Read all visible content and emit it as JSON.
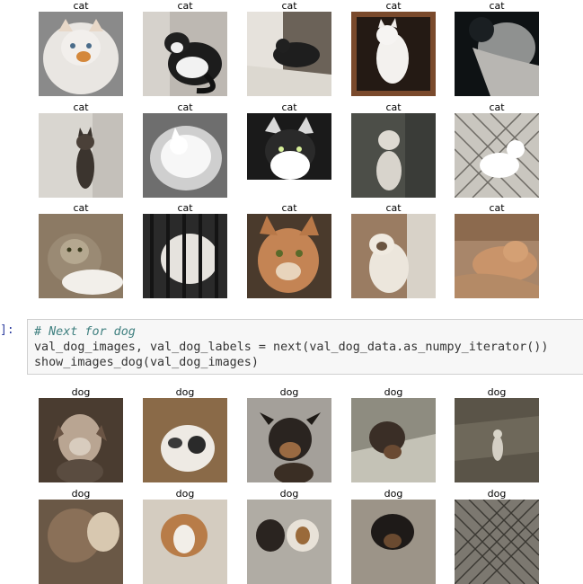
{
  "cat_section": {
    "labels": [
      "cat",
      "cat",
      "cat",
      "cat",
      "cat",
      "cat",
      "cat",
      "cat",
      "cat",
      "cat",
      "cat",
      "cat",
      "cat",
      "cat",
      "cat"
    ]
  },
  "code_cell": {
    "prompt": "]:",
    "lines": [
      "# Next for dog",
      "val_dog_images, val_dog_labels = next(val_dog_data.as_numpy_iterator())",
      "show_images_dog(val_dog_images)"
    ],
    "colors": {
      "background": "#f7f7f7",
      "comment": "#408080",
      "prompt": "#303f9f"
    }
  },
  "dog_section": {
    "labels": [
      "dog",
      "dog",
      "dog",
      "dog",
      "dog",
      "dog",
      "dog",
      "dog",
      "dog",
      "dog"
    ]
  }
}
